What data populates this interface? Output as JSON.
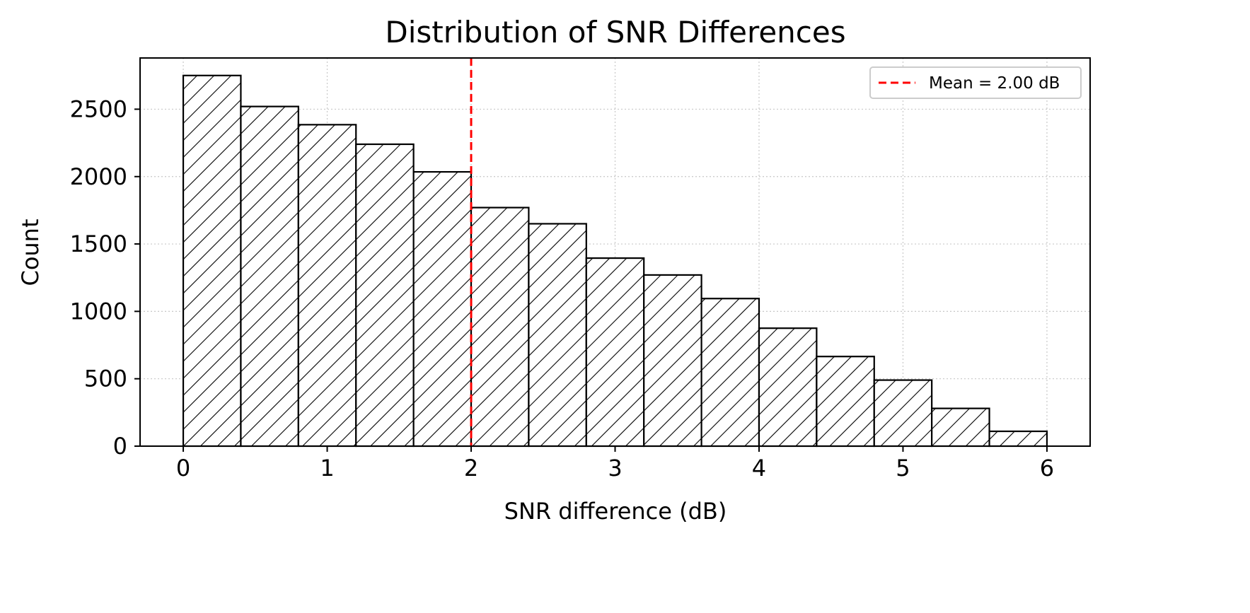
{
  "chart_data": {
    "type": "bar",
    "subtype": "histogram",
    "title": "Distribution of SNR Differences",
    "xlabel": "SNR difference (dB)",
    "ylabel": "Count",
    "xlim": [
      -0.3,
      6.3
    ],
    "ylim": [
      0,
      2880
    ],
    "xticks": [
      0,
      1,
      2,
      3,
      4,
      5,
      6
    ],
    "yticks": [
      0,
      500,
      1000,
      1500,
      2000,
      2500
    ],
    "bin_edges": [
      0,
      0.4,
      0.8,
      1.2,
      1.6,
      2.0,
      2.4,
      2.8,
      3.2,
      3.6,
      4.0,
      4.4,
      4.8,
      5.2,
      5.6,
      6.0
    ],
    "values": [
      2750,
      2520,
      2385,
      2240,
      2035,
      1770,
      1650,
      1395,
      1270,
      1095,
      875,
      665,
      490,
      280,
      110
    ],
    "bar_fill": "#ffffff",
    "bar_edge": "#000000",
    "bar_hatch": "diagonal",
    "grid": true,
    "mean_line": {
      "x": 2.0,
      "color": "#ff0000",
      "style": "dashed"
    },
    "legend": {
      "position": "top-right",
      "entries": [
        "Mean = 2.00 dB"
      ]
    }
  }
}
